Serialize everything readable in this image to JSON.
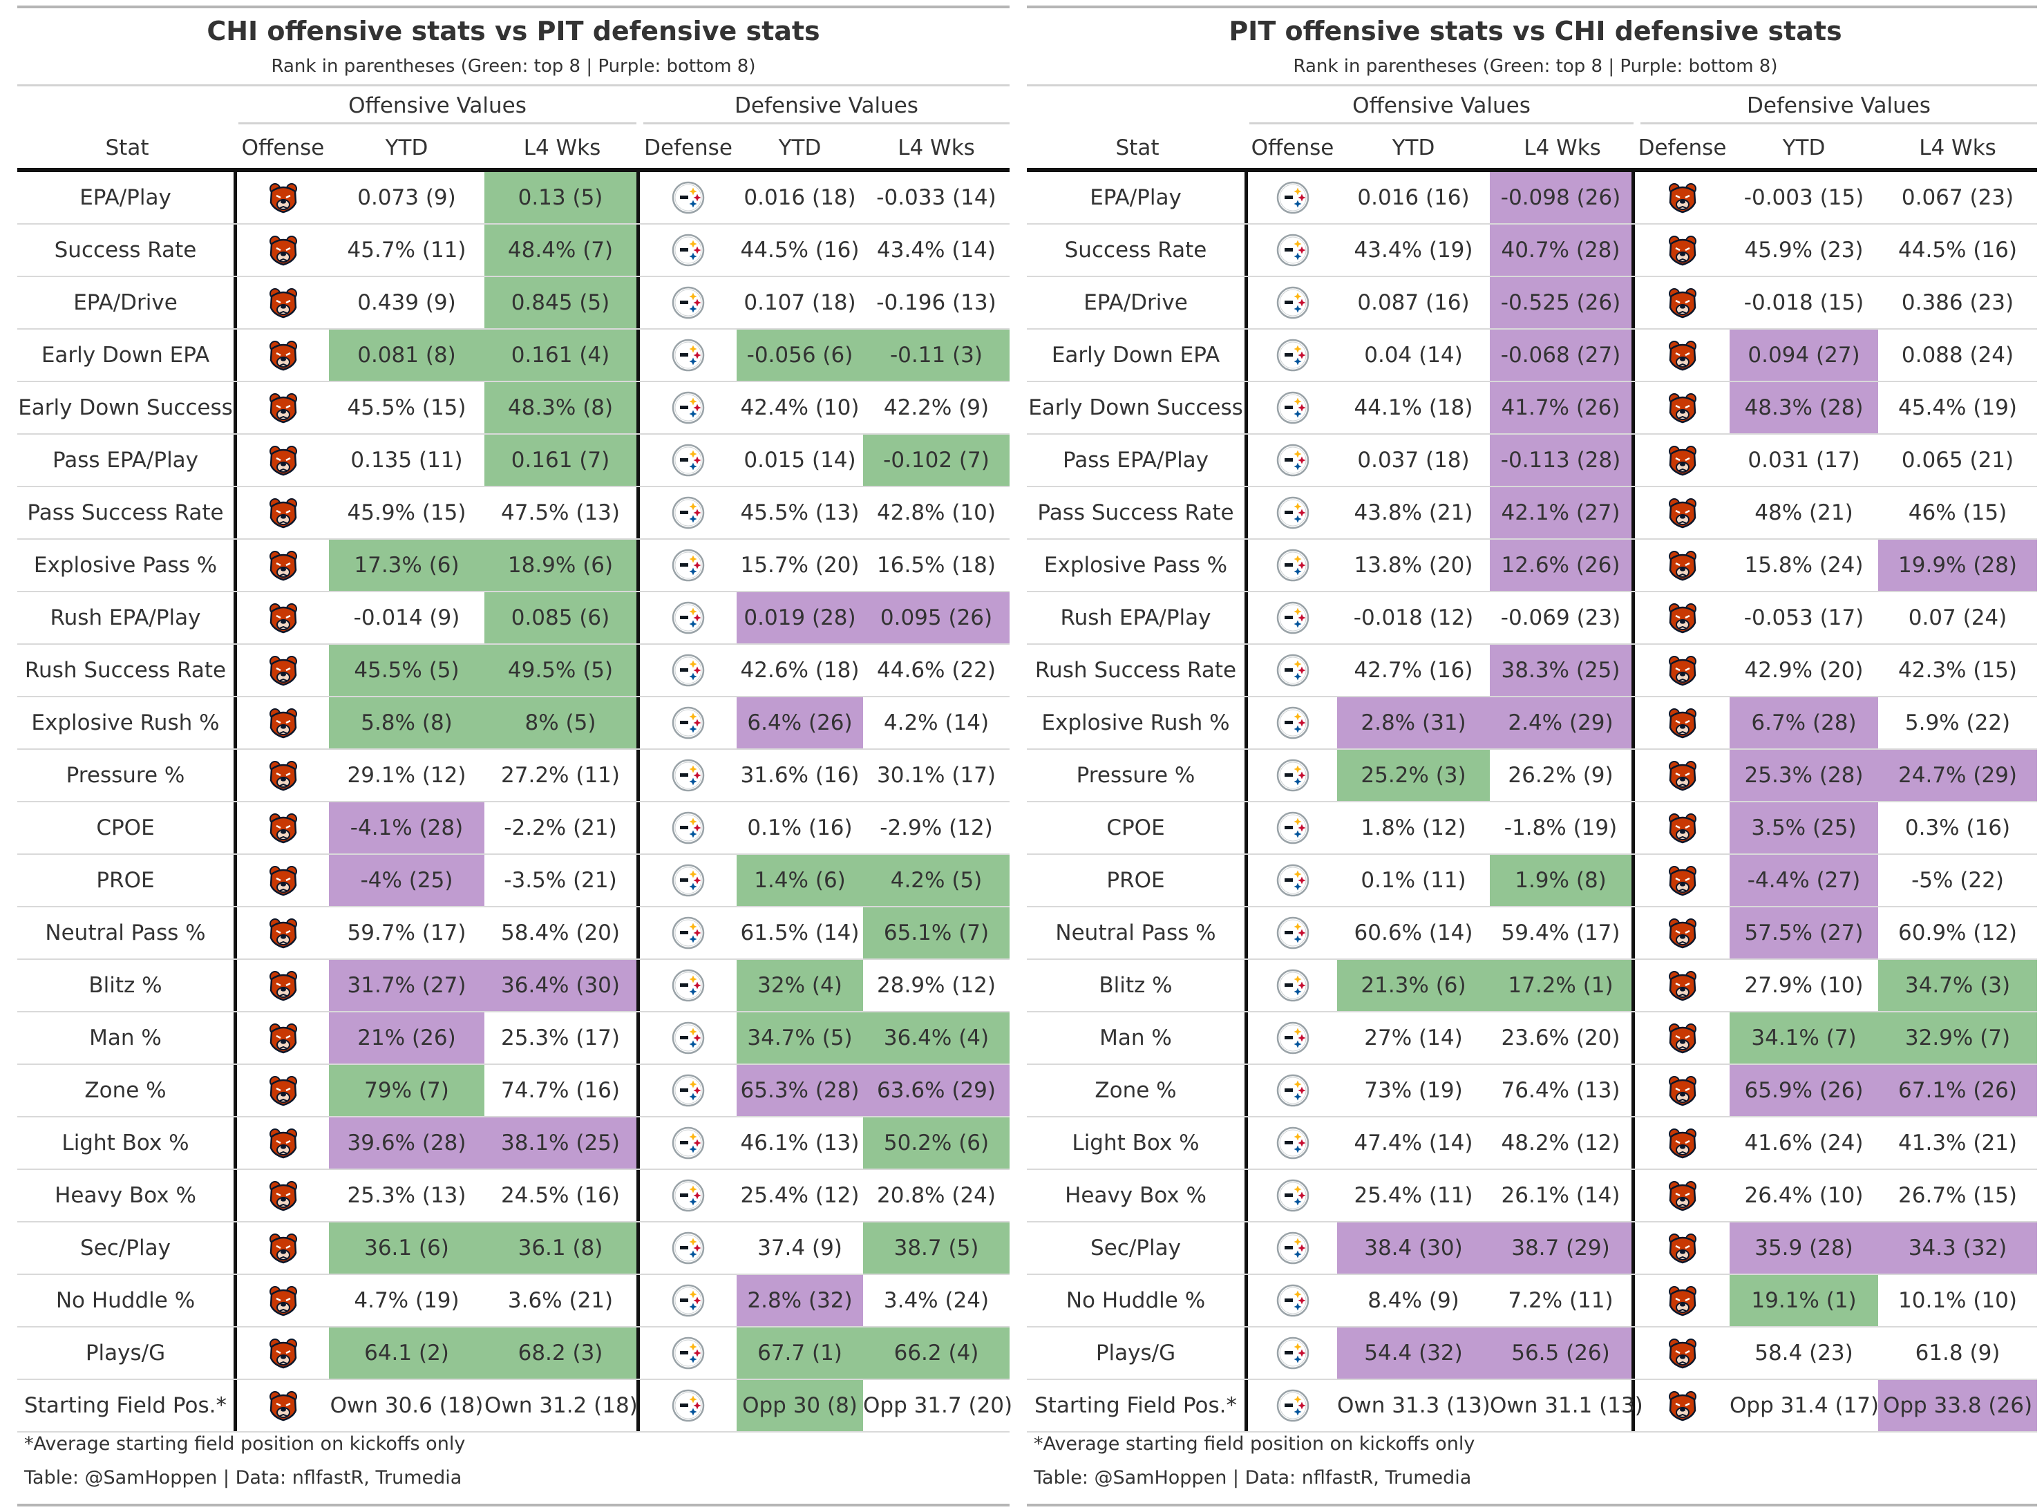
{
  "colors": {
    "green": "#93c593",
    "purple": "#c09cd0",
    "bears_orange": "#c83803",
    "bears_navy": "#0b162a",
    "steelers_gold": "#ffb612",
    "steelers_blue": "#101820",
    "steelers_red": "#c60c30"
  },
  "panels": [
    {
      "title": "CHI offensive stats vs PIT defensive stats",
      "subtitle": "Rank in parentheses (Green: top 8 | Purple: bottom 8)",
      "spanner_offense": "Offensive Values",
      "spanner_defense": "Defensive Values",
      "headers": [
        "Stat",
        "Offense",
        "YTD",
        "L4 Wks",
        "Defense",
        "YTD",
        "L4 Wks"
      ],
      "offense_logo": "bears-logo-icon",
      "defense_logo": "steelers-logo-icon",
      "rows": [
        {
          "stat": "EPA/Play",
          "off_ytd": "0.073 (9)",
          "off_l4": "0.13 (5)",
          "def_ytd": "0.016 (18)",
          "def_l4": "-0.033 (14)",
          "c": [
            "",
            "green",
            "",
            ""
          ]
        },
        {
          "stat": "Success Rate",
          "off_ytd": "45.7% (11)",
          "off_l4": "48.4% (7)",
          "def_ytd": "44.5% (16)",
          "def_l4": "43.4% (14)",
          "c": [
            "",
            "green",
            "",
            ""
          ]
        },
        {
          "stat": "EPA/Drive",
          "off_ytd": "0.439 (9)",
          "off_l4": "0.845 (5)",
          "def_ytd": "0.107 (18)",
          "def_l4": "-0.196 (13)",
          "c": [
            "",
            "green",
            "",
            ""
          ]
        },
        {
          "stat": "Early Down EPA",
          "off_ytd": "0.081 (8)",
          "off_l4": "0.161 (4)",
          "def_ytd": "-0.056 (6)",
          "def_l4": "-0.11 (3)",
          "c": [
            "green",
            "green",
            "green",
            "green"
          ]
        },
        {
          "stat": "Early Down Success",
          "off_ytd": "45.5% (15)",
          "off_l4": "48.3% (8)",
          "def_ytd": "42.4% (10)",
          "def_l4": "42.2% (9)",
          "c": [
            "",
            "green",
            "",
            ""
          ]
        },
        {
          "stat": "Pass EPA/Play",
          "off_ytd": "0.135 (11)",
          "off_l4": "0.161 (7)",
          "def_ytd": "0.015 (14)",
          "def_l4": "-0.102 (7)",
          "c": [
            "",
            "green",
            "",
            "green"
          ]
        },
        {
          "stat": "Pass Success Rate",
          "off_ytd": "45.9% (15)",
          "off_l4": "47.5% (13)",
          "def_ytd": "45.5% (13)",
          "def_l4": "42.8% (10)",
          "c": [
            "",
            "",
            "",
            ""
          ]
        },
        {
          "stat": "Explosive Pass %",
          "off_ytd": "17.3% (6)",
          "off_l4": "18.9% (6)",
          "def_ytd": "15.7% (20)",
          "def_l4": "16.5% (18)",
          "c": [
            "green",
            "green",
            "",
            ""
          ]
        },
        {
          "stat": "Rush EPA/Play",
          "off_ytd": "-0.014 (9)",
          "off_l4": "0.085 (6)",
          "def_ytd": "0.019 (28)",
          "def_l4": "0.095 (26)",
          "c": [
            "",
            "green",
            "purple",
            "purple"
          ]
        },
        {
          "stat": "Rush Success Rate",
          "off_ytd": "45.5% (5)",
          "off_l4": "49.5% (5)",
          "def_ytd": "42.6% (18)",
          "def_l4": "44.6% (22)",
          "c": [
            "green",
            "green",
            "",
            ""
          ]
        },
        {
          "stat": "Explosive Rush %",
          "off_ytd": "5.8% (8)",
          "off_l4": "8% (5)",
          "def_ytd": "6.4% (26)",
          "def_l4": "4.2% (14)",
          "c": [
            "green",
            "green",
            "purple",
            ""
          ]
        },
        {
          "stat": "Pressure %",
          "off_ytd": "29.1% (12)",
          "off_l4": "27.2% (11)",
          "def_ytd": "31.6% (16)",
          "def_l4": "30.1% (17)",
          "c": [
            "",
            "",
            "",
            ""
          ]
        },
        {
          "stat": "CPOE",
          "off_ytd": "-4.1% (28)",
          "off_l4": "-2.2% (21)",
          "def_ytd": "0.1% (16)",
          "def_l4": "-2.9% (12)",
          "c": [
            "purple",
            "",
            "",
            ""
          ]
        },
        {
          "stat": "PROE",
          "off_ytd": "-4% (25)",
          "off_l4": "-3.5% (21)",
          "def_ytd": "1.4% (6)",
          "def_l4": "4.2% (5)",
          "c": [
            "purple",
            "",
            "green",
            "green"
          ]
        },
        {
          "stat": "Neutral Pass %",
          "off_ytd": "59.7% (17)",
          "off_l4": "58.4% (20)",
          "def_ytd": "61.5% (14)",
          "def_l4": "65.1% (7)",
          "c": [
            "",
            "",
            "",
            "green"
          ]
        },
        {
          "stat": "Blitz %",
          "off_ytd": "31.7% (27)",
          "off_l4": "36.4% (30)",
          "def_ytd": "32% (4)",
          "def_l4": "28.9% (12)",
          "c": [
            "purple",
            "purple",
            "green",
            ""
          ]
        },
        {
          "stat": "Man %",
          "off_ytd": "21% (26)",
          "off_l4": "25.3% (17)",
          "def_ytd": "34.7% (5)",
          "def_l4": "36.4% (4)",
          "c": [
            "purple",
            "",
            "green",
            "green"
          ]
        },
        {
          "stat": "Zone %",
          "off_ytd": "79% (7)",
          "off_l4": "74.7% (16)",
          "def_ytd": "65.3% (28)",
          "def_l4": "63.6% (29)",
          "c": [
            "green",
            "",
            "purple",
            "purple"
          ]
        },
        {
          "stat": "Light Box %",
          "off_ytd": "39.6% (28)",
          "off_l4": "38.1% (25)",
          "def_ytd": "46.1% (13)",
          "def_l4": "50.2% (6)",
          "c": [
            "purple",
            "purple",
            "",
            "green"
          ]
        },
        {
          "stat": "Heavy Box %",
          "off_ytd": "25.3% (13)",
          "off_l4": "24.5% (16)",
          "def_ytd": "25.4% (12)",
          "def_l4": "20.8% (24)",
          "c": [
            "",
            "",
            "",
            ""
          ]
        },
        {
          "stat": "Sec/Play",
          "off_ytd": "36.1 (6)",
          "off_l4": "36.1 (8)",
          "def_ytd": "37.4 (9)",
          "def_l4": "38.7 (5)",
          "c": [
            "green",
            "green",
            "",
            "green"
          ]
        },
        {
          "stat": "No Huddle %",
          "off_ytd": "4.7% (19)",
          "off_l4": "3.6% (21)",
          "def_ytd": "2.8% (32)",
          "def_l4": "3.4% (24)",
          "c": [
            "",
            "",
            "purple",
            ""
          ]
        },
        {
          "stat": "Plays/G",
          "off_ytd": "64.1 (2)",
          "off_l4": "68.2 (3)",
          "def_ytd": "67.7 (1)",
          "def_l4": "66.2 (4)",
          "c": [
            "green",
            "green",
            "green",
            "green"
          ]
        },
        {
          "stat": "Starting Field Pos.*",
          "off_ytd": "Own 30.6 (18)",
          "off_l4": "Own 31.2 (18)",
          "def_ytd": "Opp 30 (8)",
          "def_l4": "Opp 31.7 (20)",
          "c": [
            "",
            "",
            "green",
            ""
          ]
        }
      ],
      "footnote": "*Average starting field position on kickoffs only",
      "credit": "Table: @SamHoppen | Data: nflfastR, Trumedia"
    },
    {
      "title": "PIT offensive stats vs CHI defensive stats",
      "subtitle": "Rank in parentheses (Green: top 8 | Purple: bottom 8)",
      "spanner_offense": "Offensive Values",
      "spanner_defense": "Defensive Values",
      "headers": [
        "Stat",
        "Offense",
        "YTD",
        "L4 Wks",
        "Defense",
        "YTD",
        "L4 Wks"
      ],
      "offense_logo": "steelers-logo-icon",
      "defense_logo": "bears-logo-icon",
      "rows": [
        {
          "stat": "EPA/Play",
          "off_ytd": "0.016 (16)",
          "off_l4": "-0.098 (26)",
          "def_ytd": "-0.003 (15)",
          "def_l4": "0.067 (23)",
          "c": [
            "",
            "purple",
            "",
            ""
          ]
        },
        {
          "stat": "Success Rate",
          "off_ytd": "43.4% (19)",
          "off_l4": "40.7% (28)",
          "def_ytd": "45.9% (23)",
          "def_l4": "44.5% (16)",
          "c": [
            "",
            "purple",
            "",
            ""
          ]
        },
        {
          "stat": "EPA/Drive",
          "off_ytd": "0.087 (16)",
          "off_l4": "-0.525 (26)",
          "def_ytd": "-0.018 (15)",
          "def_l4": "0.386 (23)",
          "c": [
            "",
            "purple",
            "",
            ""
          ]
        },
        {
          "stat": "Early Down EPA",
          "off_ytd": "0.04 (14)",
          "off_l4": "-0.068 (27)",
          "def_ytd": "0.094 (27)",
          "def_l4": "0.088 (24)",
          "c": [
            "",
            "purple",
            "purple",
            ""
          ]
        },
        {
          "stat": "Early Down Success",
          "off_ytd": "44.1% (18)",
          "off_l4": "41.7% (26)",
          "def_ytd": "48.3% (28)",
          "def_l4": "45.4% (19)",
          "c": [
            "",
            "purple",
            "purple",
            ""
          ]
        },
        {
          "stat": "Pass EPA/Play",
          "off_ytd": "0.037 (18)",
          "off_l4": "-0.113 (28)",
          "def_ytd": "0.031 (17)",
          "def_l4": "0.065 (21)",
          "c": [
            "",
            "purple",
            "",
            ""
          ]
        },
        {
          "stat": "Pass Success Rate",
          "off_ytd": "43.8% (21)",
          "off_l4": "42.1% (27)",
          "def_ytd": "48% (21)",
          "def_l4": "46% (15)",
          "c": [
            "",
            "purple",
            "",
            ""
          ]
        },
        {
          "stat": "Explosive Pass %",
          "off_ytd": "13.8% (20)",
          "off_l4": "12.6% (26)",
          "def_ytd": "15.8% (24)",
          "def_l4": "19.9% (28)",
          "c": [
            "",
            "purple",
            "",
            "purple"
          ]
        },
        {
          "stat": "Rush EPA/Play",
          "off_ytd": "-0.018 (12)",
          "off_l4": "-0.069 (23)",
          "def_ytd": "-0.053 (17)",
          "def_l4": "0.07 (24)",
          "c": [
            "",
            "",
            "",
            ""
          ]
        },
        {
          "stat": "Rush Success Rate",
          "off_ytd": "42.7% (16)",
          "off_l4": "38.3% (25)",
          "def_ytd": "42.9% (20)",
          "def_l4": "42.3% (15)",
          "c": [
            "",
            "purple",
            "",
            ""
          ]
        },
        {
          "stat": "Explosive Rush %",
          "off_ytd": "2.8% (31)",
          "off_l4": "2.4% (29)",
          "def_ytd": "6.7% (28)",
          "def_l4": "5.9% (22)",
          "c": [
            "purple",
            "purple",
            "purple",
            ""
          ]
        },
        {
          "stat": "Pressure %",
          "off_ytd": "25.2% (3)",
          "off_l4": "26.2% (9)",
          "def_ytd": "25.3% (28)",
          "def_l4": "24.7% (29)",
          "c": [
            "green",
            "",
            "purple",
            "purple"
          ]
        },
        {
          "stat": "CPOE",
          "off_ytd": "1.8% (12)",
          "off_l4": "-1.8% (19)",
          "def_ytd": "3.5% (25)",
          "def_l4": "0.3% (16)",
          "c": [
            "",
            "",
            "purple",
            ""
          ]
        },
        {
          "stat": "PROE",
          "off_ytd": "0.1% (11)",
          "off_l4": "1.9% (8)",
          "def_ytd": "-4.4% (27)",
          "def_l4": "-5% (22)",
          "c": [
            "",
            "green",
            "purple",
            ""
          ]
        },
        {
          "stat": "Neutral Pass %",
          "off_ytd": "60.6% (14)",
          "off_l4": "59.4% (17)",
          "def_ytd": "57.5% (27)",
          "def_l4": "60.9% (12)",
          "c": [
            "",
            "",
            "purple",
            ""
          ]
        },
        {
          "stat": "Blitz %",
          "off_ytd": "21.3% (6)",
          "off_l4": "17.2% (1)",
          "def_ytd": "27.9% (10)",
          "def_l4": "34.7% (3)",
          "c": [
            "green",
            "green",
            "",
            "green"
          ]
        },
        {
          "stat": "Man %",
          "off_ytd": "27% (14)",
          "off_l4": "23.6% (20)",
          "def_ytd": "34.1% (7)",
          "def_l4": "32.9% (7)",
          "c": [
            "",
            "",
            "green",
            "green"
          ]
        },
        {
          "stat": "Zone %",
          "off_ytd": "73% (19)",
          "off_l4": "76.4% (13)",
          "def_ytd": "65.9% (26)",
          "def_l4": "67.1% (26)",
          "c": [
            "",
            "",
            "purple",
            "purple"
          ]
        },
        {
          "stat": "Light Box %",
          "off_ytd": "47.4% (14)",
          "off_l4": "48.2% (12)",
          "def_ytd": "41.6% (24)",
          "def_l4": "41.3% (21)",
          "c": [
            "",
            "",
            "",
            ""
          ]
        },
        {
          "stat": "Heavy Box %",
          "off_ytd": "25.4% (11)",
          "off_l4": "26.1% (14)",
          "def_ytd": "26.4% (10)",
          "def_l4": "26.7% (15)",
          "c": [
            "",
            "",
            "",
            ""
          ]
        },
        {
          "stat": "Sec/Play",
          "off_ytd": "38.4 (30)",
          "off_l4": "38.7 (29)",
          "def_ytd": "35.9 (28)",
          "def_l4": "34.3 (32)",
          "c": [
            "purple",
            "purple",
            "purple",
            "purple"
          ]
        },
        {
          "stat": "No Huddle %",
          "off_ytd": "8.4% (9)",
          "off_l4": "7.2% (11)",
          "def_ytd": "19.1% (1)",
          "def_l4": "10.1% (10)",
          "c": [
            "",
            "",
            "green",
            ""
          ]
        },
        {
          "stat": "Plays/G",
          "off_ytd": "54.4 (32)",
          "off_l4": "56.5 (26)",
          "def_ytd": "58.4 (23)",
          "def_l4": "61.8 (9)",
          "c": [
            "purple",
            "purple",
            "",
            ""
          ]
        },
        {
          "stat": "Starting Field Pos.*",
          "off_ytd": "Own 31.3 (13)",
          "off_l4": "Own 31.1 (13)",
          "def_ytd": "Opp 31.4 (17)",
          "def_l4": "Opp 33.8 (26)",
          "c": [
            "",
            "",
            "",
            "purple"
          ]
        }
      ],
      "footnote": "*Average starting field position on kickoffs only",
      "credit": "Table: @SamHoppen | Data: nflfastR, Trumedia"
    }
  ]
}
